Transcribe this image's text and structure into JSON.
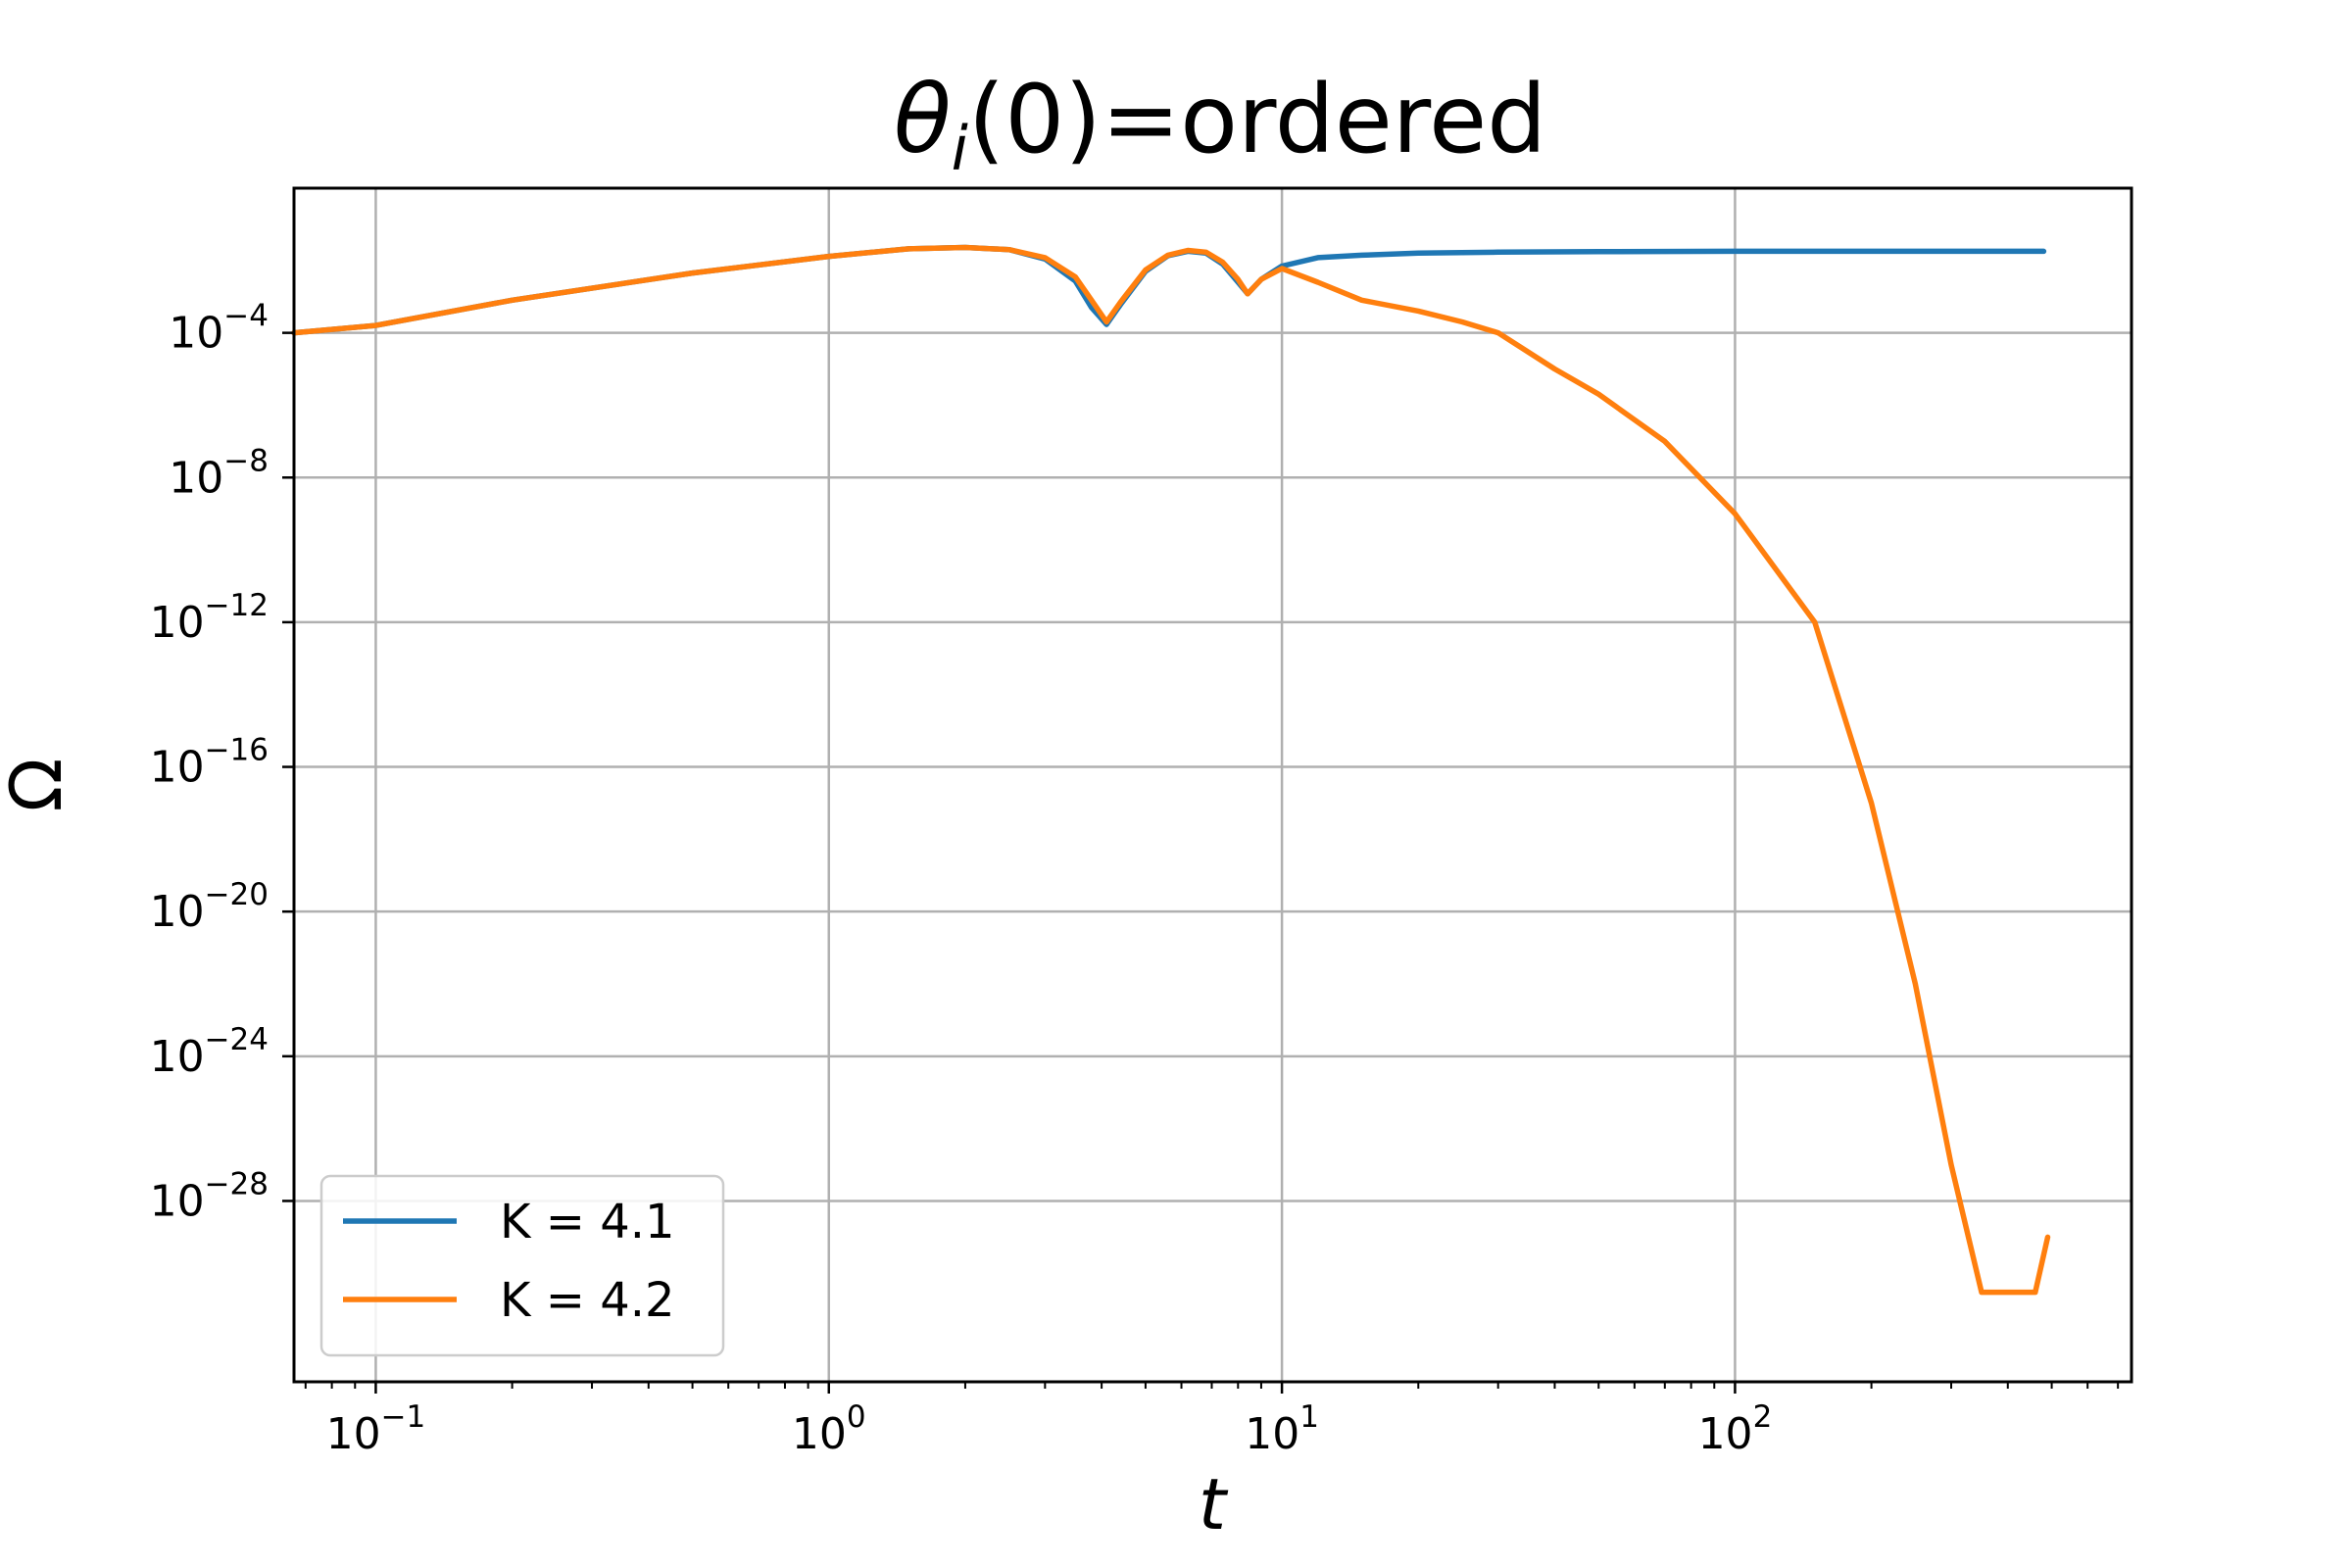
{
  "chart_data": {
    "type": "line",
    "title": {
      "symbol": "θ",
      "subscript": "i",
      "rest": "(0)=ordered"
    },
    "xlabel": "t",
    "ylabel": "Ω",
    "x_scale": "log",
    "y_scale": "log",
    "xlim": [
      0.066,
      750
    ],
    "ylim": [
      1e-33,
      1.0
    ],
    "grid": true,
    "legend_position": "lower-left",
    "x_ticks": [
      {
        "value": 0.1,
        "base": "10",
        "exp": "−1"
      },
      {
        "value": 1,
        "base": "10",
        "exp": "0"
      },
      {
        "value": 10,
        "base": "10",
        "exp": "1"
      },
      {
        "value": 100,
        "base": "10",
        "exp": "2"
      }
    ],
    "y_ticks": [
      {
        "value": 0.0001,
        "base": "10",
        "exp": "−4"
      },
      {
        "value": 1e-08,
        "base": "10",
        "exp": "−8"
      },
      {
        "value": 1e-12,
        "base": "10",
        "exp": "−12"
      },
      {
        "value": 1e-16,
        "base": "10",
        "exp": "−16"
      },
      {
        "value": 1e-20,
        "base": "10",
        "exp": "−20"
      },
      {
        "value": 1e-24,
        "base": "10",
        "exp": "−24"
      },
      {
        "value": 1e-28,
        "base": "10",
        "exp": "−28"
      }
    ],
    "series": [
      {
        "name": "K = 4.1",
        "color": "#1f77b4",
        "x": [
          0.066,
          0.1,
          0.2,
          0.5,
          1.0,
          1.5,
          2.0,
          2.5,
          3.0,
          3.5,
          3.8,
          4.1,
          4.4,
          5.0,
          5.6,
          6.2,
          6.8,
          7.4,
          8.0,
          8.4,
          9.0,
          10.0,
          12.0,
          15.0,
          20.0,
          30.0,
          50.0,
          100.0,
          200.0,
          480.0
        ],
        "y": [
          0.0001,
          0.00016,
          0.0008,
          0.0045,
          0.013,
          0.021,
          0.023,
          0.02,
          0.011,
          0.0027,
          0.0005,
          0.00017,
          0.0006,
          0.005,
          0.0135,
          0.018,
          0.016,
          0.008,
          0.0025,
          0.0012,
          0.003,
          0.007,
          0.012,
          0.014,
          0.016,
          0.017,
          0.0175,
          0.018,
          0.018,
          0.018
        ]
      },
      {
        "name": "K = 4.2",
        "color": "#ff7f0e",
        "x": [
          0.066,
          0.1,
          0.2,
          0.5,
          1.0,
          1.5,
          2.0,
          2.5,
          3.0,
          3.5,
          3.8,
          4.1,
          4.4,
          5.0,
          5.6,
          6.2,
          6.8,
          7.4,
          8.0,
          8.4,
          9.0,
          10.0,
          12.0,
          15.0,
          20.0,
          25.0,
          30.0,
          40.0,
          50.0,
          70.0,
          100.0,
          150.0,
          200.0,
          250.0,
          300.0,
          350.0,
          400.0,
          460.0,
          490.0
        ],
        "y": [
          0.0001,
          0.00016,
          0.0008,
          0.0045,
          0.013,
          0.021,
          0.023,
          0.02,
          0.012,
          0.0035,
          0.0008,
          0.0002,
          0.0007,
          0.0055,
          0.014,
          0.019,
          0.017,
          0.009,
          0.003,
          0.0012,
          0.003,
          0.006,
          0.0025,
          0.0008,
          0.0004,
          0.0002,
          0.0001,
          1e-05,
          2e-06,
          1e-07,
          1e-09,
          1e-12,
          1e-17,
          1e-22,
          1e-27,
          3e-31,
          3e-31,
          3e-31,
          1e-29
        ]
      }
    ]
  }
}
